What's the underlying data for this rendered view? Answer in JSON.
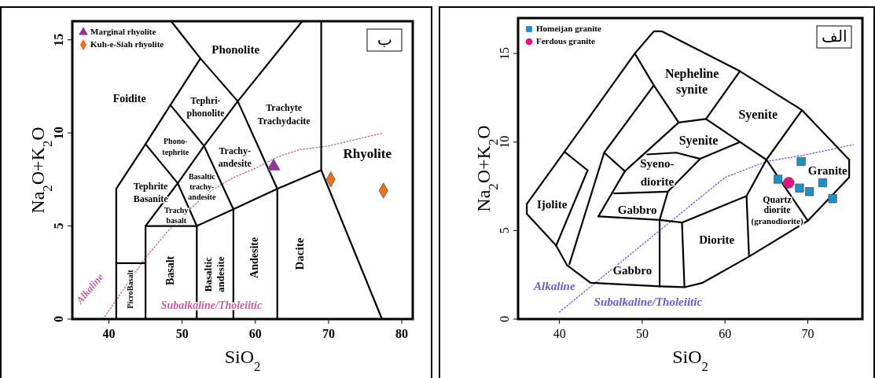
{
  "chart_data": [
    {
      "type": "scatter",
      "xlabel": "SiO$_{2}$",
      "ylabel": "Na$_{2}$O+K$_{2}$O",
      "xlim": [
        35,
        81.5
      ],
      "ylim": [
        0,
        16
      ],
      "xticks": [
        40,
        50,
        60,
        70,
        80
      ],
      "yticks": [
        0,
        5,
        10,
        15
      ],
      "legend": "top left",
      "grid": false,
      "series": [
        {
          "name": "Marginal rhyolite",
          "color": "#9b2f9b",
          "marker": "triangle",
          "x": [
            62.5
          ],
          "values": [
            8.2
          ]
        },
        {
          "name": "Kuh-e-Siah rhyolite",
          "color": "#e8731c",
          "marker": "diamond",
          "x": [
            70.3,
            77.5
          ],
          "values": [
            7.5,
            6.9
          ]
        },
        {
          "type": "line",
          "color": "#c0609a",
          "line_style": "dotted",
          "x": [
            39.2,
            42,
            45,
            48,
            51,
            54,
            57,
            60,
            63,
            66,
            70,
            77.5
          ],
          "values": [
            0,
            1.6,
            3.3,
            4.7,
            5.9,
            6.9,
            7.6,
            8.1,
            8.7,
            9.1,
            9.3,
            10
          ]
        },
        {
          "type": "line",
          "color": "#000000",
          "x": [
            41,
            41,
            41,
            45,
            48.4,
            52.5,
            57.6,
            63,
            63
          ],
          "values": [
            0,
            3,
            7,
            9.4,
            11.5,
            14,
            11.7,
            7,
            0
          ]
        },
        {
          "type": "line",
          "color": "#000000",
          "x": [
            41,
            45
          ],
          "values": [
            3,
            3
          ]
        },
        {
          "type": "line",
          "color": "#000000",
          "x": [
            45,
            45,
            49.4,
            53,
            57.6,
            66.4
          ],
          "values": [
            0,
            5,
            7.3,
            9.3,
            11.7,
            16
          ]
        },
        {
          "type": "line",
          "color": "#000000",
          "x": [
            45,
            52,
            57,
            63,
            69,
            77.3
          ],
          "values": [
            5,
            5,
            5.9,
            7,
            8,
            0
          ]
        },
        {
          "type": "line",
          "color": "#000000",
          "x": [
            45,
            49.4,
            52,
            52
          ],
          "values": [
            9.4,
            7.3,
            5,
            0
          ]
        },
        {
          "type": "line",
          "color": "#000000",
          "x": [
            48.4,
            53,
            57,
            57
          ],
          "values": [
            11.5,
            9.3,
            5.9,
            0
          ]
        },
        {
          "type": "line",
          "color": "#000000",
          "x": [
            48.5,
            52.5
          ],
          "values": [
            16,
            14
          ]
        },
        {
          "type": "line",
          "color": "#000000",
          "x": [
            69,
            69
          ],
          "values": [
            16,
            8
          ]
        }
      ],
      "annotations": [
        "ب",
        "Foidite",
        "Phonolite",
        "Tephri-",
        "phonolite",
        "Trachyte",
        "Trachydacite",
        "Phono-",
        "tephrite",
        "Trachy-",
        "andesite",
        "Rhyolite",
        "Tephrite",
        "Basanite",
        "Basaltic",
        "trachy-",
        "andesite",
        "Trachy",
        "basalt",
        "PicroBasalt",
        "Basalt",
        "Basaltic",
        "andesite",
        "Andesite",
        "Dacite",
        "Alkaline",
        "Subalkaline/Tholeiitic"
      ]
    },
    {
      "type": "scatter",
      "xlabel": "SiO$_{2}$",
      "ylabel": "Na$_{2}$O+K$_{2}$O",
      "xlim": [
        35,
        76.6
      ],
      "ylim": [
        0,
        17
      ],
      "xticks": [
        40,
        50,
        60,
        70
      ],
      "yticks": [
        0,
        5,
        10,
        15
      ],
      "legend": "top left",
      "grid": false,
      "series": [
        {
          "name": "Homeijan granite",
          "color": "#1a8fc9",
          "marker": "square",
          "x": [
            66.4,
            69.2,
            69.0,
            70.2,
            71.8,
            73.0
          ],
          "values": [
            7.9,
            8.9,
            7.4,
            7.2,
            7.7,
            6.8
          ]
        },
        {
          "name": "Ferdous granite",
          "color": "#e0137f",
          "marker": "circle",
          "x": [
            67.7
          ],
          "values": [
            7.7
          ]
        },
        {
          "type": "line",
          "color": "#6a5acd",
          "line_style": "dotted",
          "x": [
            40,
            60,
            65,
            70,
            75.5
          ],
          "values": [
            0.4,
            8,
            8.9,
            9.3,
            9.85
          ]
        },
        {
          "type": "line",
          "color": "#000000",
          "x": [
            36.05,
            36.05,
            39.6,
            40.9,
            43.75,
            52.1,
            55.1,
            57.3,
            62.8,
            70,
            75,
            75
          ],
          "values": [
            6.5,
            5.95,
            4.15,
            3.05,
            2.05,
            1.85,
            1.8,
            2.05,
            3.5,
            5.55,
            8,
            9
          ]
        },
        {
          "type": "line",
          "color": "#000000",
          "x": [
            36.05,
            40.6,
            49.1,
            51.4,
            52.4,
            61.8,
            69.3,
            75
          ],
          "values": [
            6.5,
            9.45,
            15,
            16.25,
            16.25,
            14,
            11.8,
            9
          ]
        },
        {
          "type": "line",
          "color": "#000000",
          "x": [
            49.1,
            51.4,
            54.4,
            57.7,
            61.8
          ],
          "values": [
            15,
            13.2,
            11.1,
            11.3,
            14
          ]
        },
        {
          "type": "line",
          "color": "#000000",
          "x": [
            41.2,
            45.4,
            51.4
          ],
          "values": [
            3.1,
            9.4,
            13.2
          ]
        },
        {
          "type": "line",
          "color": "#000000",
          "x": [
            45.4,
            47.9,
            54.4
          ],
          "values": [
            9.4,
            8.35,
            11.1
          ]
        },
        {
          "type": "line",
          "color": "#000000",
          "x": [
            39.6,
            43.4
          ],
          "values": [
            4.15,
            8.4
          ]
        },
        {
          "type": "line",
          "color": "#000000",
          "x": [
            40.6,
            43.4
          ],
          "values": [
            9.45,
            8.4
          ]
        },
        {
          "type": "line",
          "color": "#000000",
          "x": [
            44.7,
            47.9
          ],
          "values": [
            5.8,
            8.35
          ]
        },
        {
          "type": "line",
          "color": "#000000",
          "x": [
            44.7,
            52.1,
            54.8,
            62.6,
            65,
            70
          ],
          "values": [
            5.8,
            5.6,
            5.45,
            6.95,
            9,
            5.55
          ]
        },
        {
          "type": "line",
          "color": "#000000",
          "x": [
            50.6,
            54.1,
            57,
            61.8,
            65,
            69.3
          ],
          "values": [
            9.3,
            9.4,
            9.05,
            10,
            9,
            11.8
          ]
        },
        {
          "type": "line",
          "color": "#000000",
          "x": [
            57.7,
            61.8
          ],
          "values": [
            11.3,
            10
          ]
        },
        {
          "type": "line",
          "color": "#000000",
          "x": [
            52.1,
            52.1,
            53.1,
            57
          ],
          "values": [
            1.85,
            5.6,
            7.2,
            9.05
          ]
        },
        {
          "type": "line",
          "color": "#000000",
          "x": [
            46.6,
            53.1
          ],
          "values": [
            7.1,
            7.2
          ]
        },
        {
          "type": "line",
          "color": "#000000",
          "x": [
            54.8,
            55.1
          ],
          "values": [
            5.45,
            1.8
          ]
        },
        {
          "type": "line",
          "color": "#000000",
          "x": [
            62.6,
            62.9
          ],
          "values": [
            6.95,
            3.55
          ]
        }
      ],
      "annotations": [
        "الف",
        "Nepheline",
        "synite",
        "Syenite",
        "Syenite",
        "Syeno-",
        "diorite",
        "Granite",
        "Ijolite",
        "Gabbro",
        "Quartz",
        "diorite",
        "(granodiorite)",
        "Diorite",
        "Gabbro",
        "Alkaline",
        "Subalkaline/Tholeiitic"
      ]
    }
  ]
}
